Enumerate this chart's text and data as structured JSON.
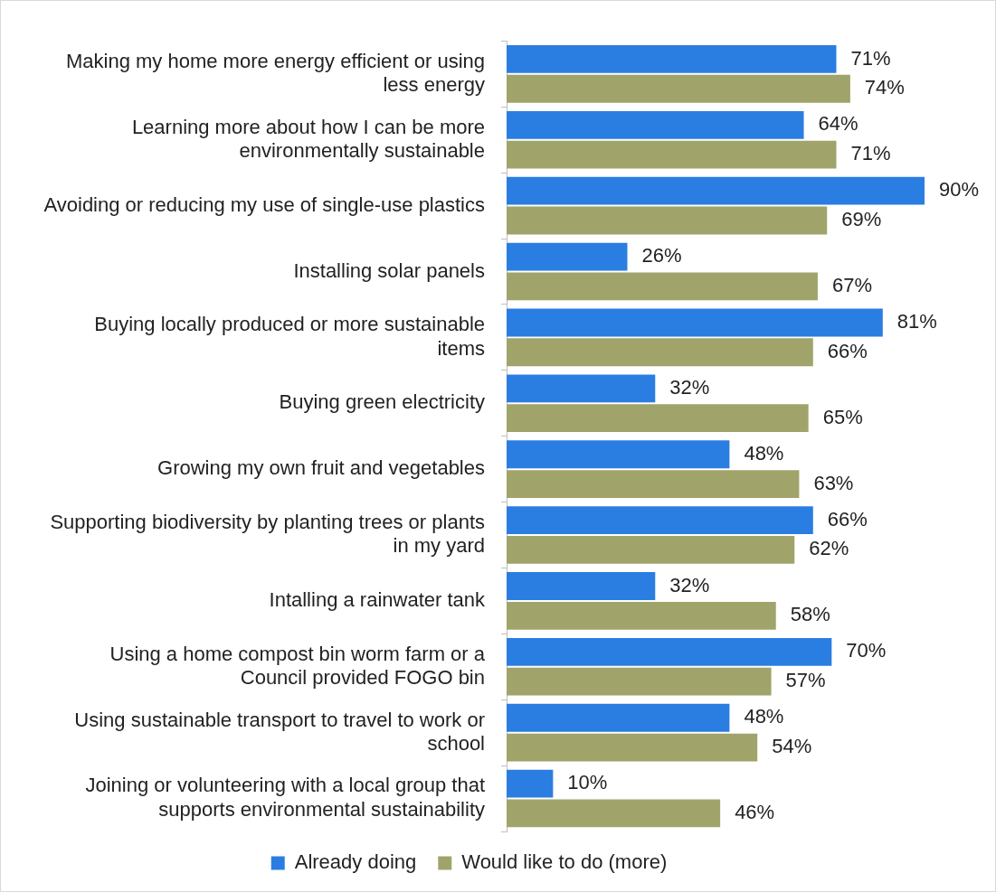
{
  "chart_data": {
    "type": "bar",
    "orientation": "horizontal",
    "categories": [
      "Making my home more energy efficient or using less energy",
      "Learning more about how I can be more environmentally sustainable",
      "Avoiding or reducing my use of single-use plastics",
      "Installing solar panels",
      "Buying locally produced or more sustainable items",
      "Buying green electricity",
      "Growing my own fruit and vegetables",
      "Supporting biodiversity by planting trees or plants in my yard",
      "Intalling a rainwater tank",
      "Using a home compost bin worm farm or a Council provided FOGO bin",
      "Using sustainable transport to travel to work or school",
      "Joining or volunteering with a local group that supports environmental sustainability"
    ],
    "series": [
      {
        "name": "Already doing",
        "color": "#2a7de1",
        "values": [
          71,
          64,
          90,
          26,
          81,
          32,
          48,
          66,
          32,
          70,
          48,
          10
        ],
        "value_labels": [
          "71%",
          "64%",
          "90%",
          "26%",
          "81%",
          "32%",
          "48%",
          "66%",
          "32%",
          "70%",
          "48%",
          "10%"
        ]
      },
      {
        "name": "Would like to do (more)",
        "color": "#a0a46a",
        "values": [
          74,
          71,
          69,
          67,
          66,
          65,
          63,
          62,
          58,
          57,
          54,
          46
        ],
        "value_labels": [
          "74%",
          "71%",
          "69%",
          "67%",
          "66%",
          "65%",
          "63%",
          "62%",
          "58%",
          "57%",
          "54%",
          "46%"
        ]
      }
    ],
    "legend": "bottom",
    "grid": false
  }
}
